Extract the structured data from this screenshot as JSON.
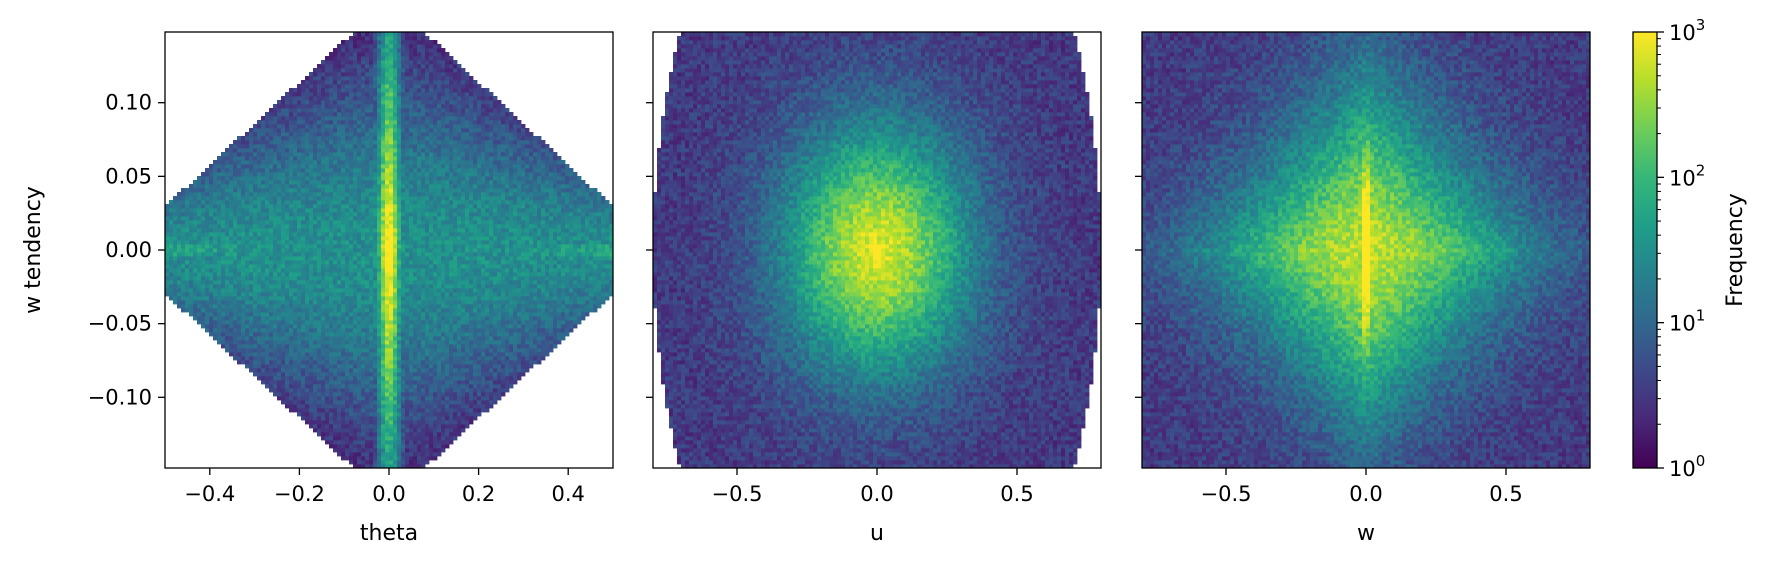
{
  "chart_data": [
    {
      "type": "heatmap",
      "title": "",
      "xlabel": "theta",
      "ylabel": "w tendency",
      "xlim": [
        -0.5,
        0.5
      ],
      "ylim": [
        -0.148,
        0.148
      ],
      "xticks": [
        -0.4,
        -0.2,
        0.0,
        0.2,
        0.4
      ],
      "xtick_labels": [
        "−0.4",
        "−0.2",
        "0.0",
        "0.2",
        "0.4"
      ],
      "yticks": [
        -0.1,
        -0.05,
        0.0,
        0.05,
        0.1
      ],
      "ytick_labels": [
        "−0.10",
        "−0.05",
        "0.00",
        "0.05",
        "0.10"
      ],
      "distribution": {
        "shape": "vertical spindle centered at theta = 0 with horizontal wings",
        "peak_x": 0.0,
        "peak_y": 0.0,
        "peak_frequency": 1000
      }
    },
    {
      "type": "heatmap",
      "title": "",
      "xlabel": "u",
      "ylabel": "",
      "xlim": [
        -0.8,
        0.8
      ],
      "ylim": [
        -0.148,
        0.148
      ],
      "xticks": [
        -0.5,
        0.0,
        0.5
      ],
      "xtick_labels": [
        "−0.5",
        "0.0",
        "0.5"
      ],
      "yticks": [
        -0.1,
        -0.05,
        0.0,
        0.05,
        0.1
      ],
      "ytick_labels": [],
      "distribution": {
        "shape": "broad elliptical cloud with sharp central peak",
        "peak_x": 0.0,
        "peak_y": 0.0,
        "peak_frequency": 400
      }
    },
    {
      "type": "heatmap",
      "title": "",
      "xlabel": "w",
      "ylabel": "",
      "xlim": [
        -0.8,
        0.8
      ],
      "ylim": [
        -0.148,
        0.148
      ],
      "xticks": [
        -0.5,
        0.0,
        0.5
      ],
      "xtick_labels": [
        "−0.5",
        "0.0",
        "0.5"
      ],
      "yticks": [
        -0.1,
        -0.05,
        0.0,
        0.05,
        0.1
      ],
      "ytick_labels": [],
      "distribution": {
        "shape": "diamond-shaped cloud with thin vertical ridge at w = 0",
        "peak_x": 0.0,
        "peak_y": 0.0,
        "peak_frequency": 800
      }
    }
  ],
  "colorbar": {
    "label": "Frequency",
    "scale": "log",
    "range": [
      1,
      1000
    ],
    "colormap": "viridis",
    "tick_labels": [
      {
        "base": "10",
        "exp": "0",
        "value": 1
      },
      {
        "base": "10",
        "exp": "1",
        "value": 10
      },
      {
        "base": "10",
        "exp": "2",
        "value": 100
      },
      {
        "base": "10",
        "exp": "3",
        "value": 1000
      }
    ]
  },
  "colors": {
    "viridis": [
      "#440154",
      "#482878",
      "#3e4989",
      "#31688e",
      "#26828e",
      "#1f9e89",
      "#35b779",
      "#6ece58",
      "#b5de2b",
      "#fde725"
    ],
    "empty_bin": "#ffffff"
  }
}
